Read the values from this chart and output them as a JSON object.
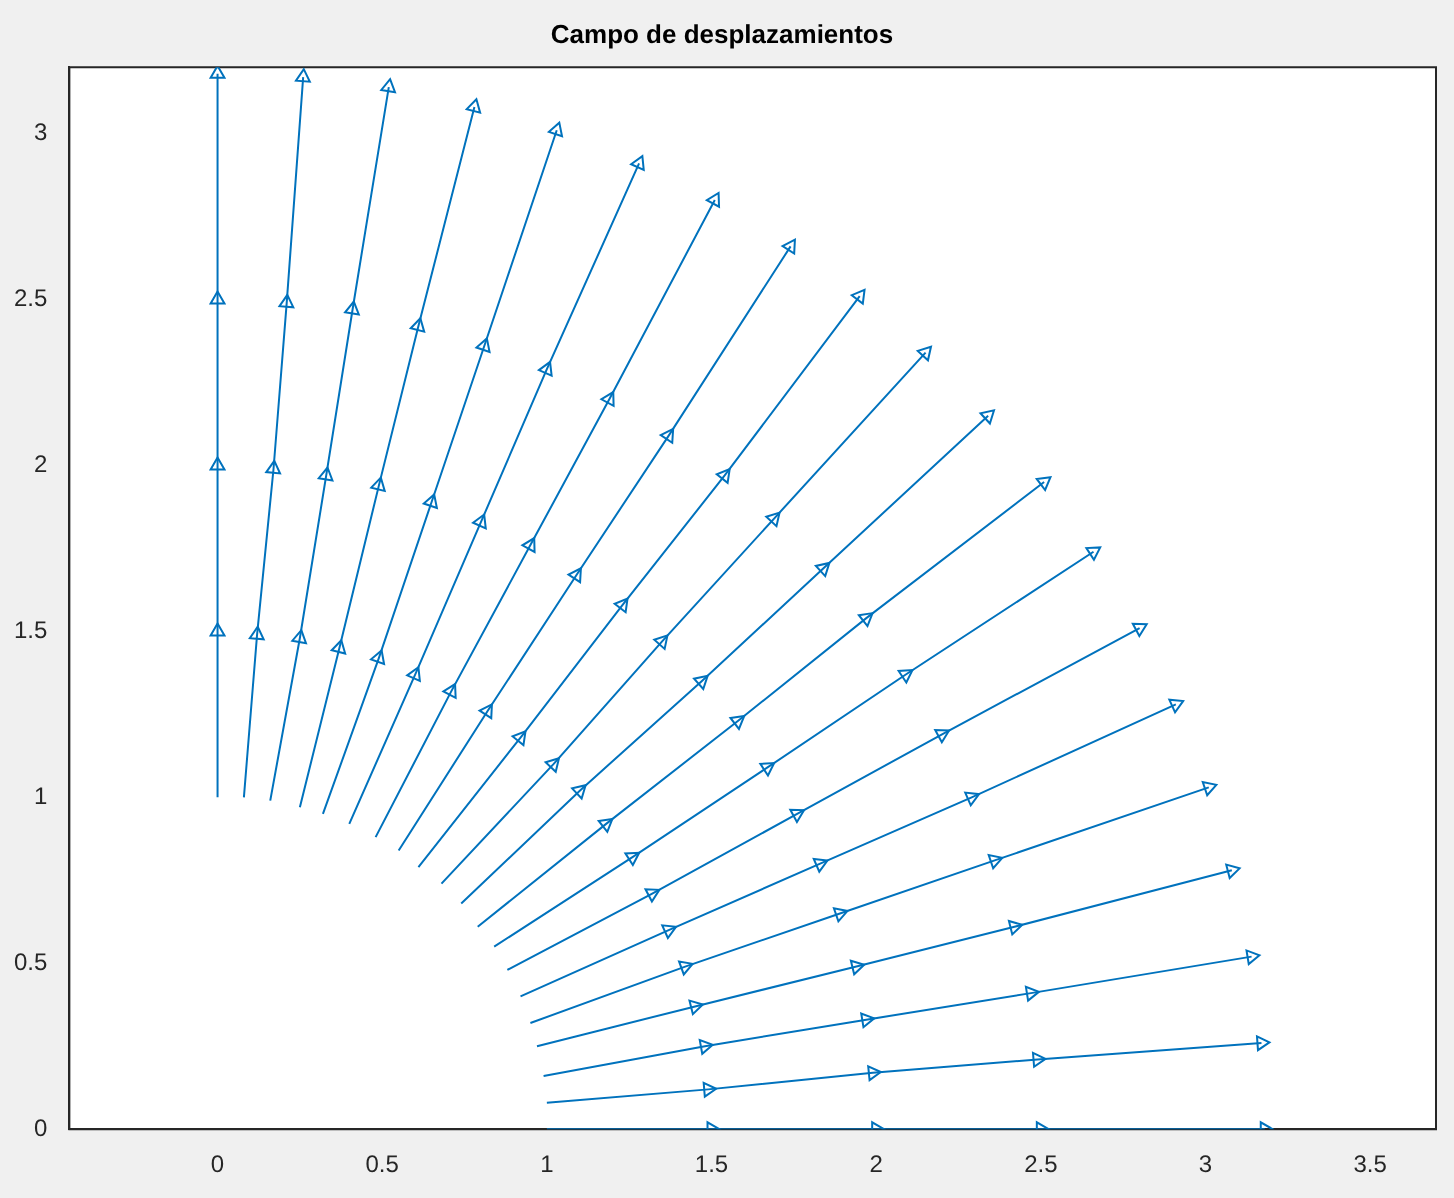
{
  "chart_data": {
    "type": "line",
    "title": "Campo de desplazamientos",
    "marker": "triangle",
    "xlim": [
      -0.45,
      3.7
    ],
    "ylim": [
      0,
      3.2
    ],
    "xticks": [
      0,
      0.5,
      1,
      1.5,
      2,
      2.5,
      3,
      3.5
    ],
    "yticks": [
      0,
      0.5,
      1,
      1.5,
      2,
      2.5,
      3
    ],
    "series": [
      {
        "color": "#0072bd",
        "x": [
          1,
          1.5,
          2,
          2.5,
          3.18
        ],
        "values": [
          0,
          0,
          0,
          0,
          0
        ]
      },
      {
        "color": "#0072bd",
        "x": [
          1.0,
          1.49,
          1.99,
          2.49,
          3.17
        ],
        "values": [
          0.08,
          0.12,
          0.17,
          0.21,
          0.26
        ]
      },
      {
        "color": "#0072bd",
        "x": [
          0.99,
          1.48,
          1.97,
          2.47,
          3.14
        ],
        "values": [
          0.16,
          0.25,
          0.33,
          0.41,
          0.52
        ]
      },
      {
        "color": "#0072bd",
        "x": [
          0.97,
          1.45,
          1.94,
          2.42,
          3.08
        ],
        "values": [
          0.25,
          0.37,
          0.49,
          0.61,
          0.78
        ]
      },
      {
        "color": "#0072bd",
        "x": [
          0.95,
          1.42,
          1.89,
          2.36,
          3.01
        ],
        "values": [
          0.32,
          0.49,
          0.65,
          0.81,
          1.03
        ]
      },
      {
        "color": "#0072bd",
        "x": [
          0.92,
          1.37,
          1.83,
          2.29,
          2.91
        ],
        "values": [
          0.4,
          0.6,
          0.8,
          1.0,
          1.28
        ]
      },
      {
        "color": "#0072bd",
        "x": [
          0.88,
          1.32,
          1.76,
          2.2,
          2.8
        ],
        "values": [
          0.48,
          0.71,
          0.95,
          1.19,
          1.51
        ]
      },
      {
        "color": "#0072bd",
        "x": [
          0.84,
          1.26,
          1.67,
          2.09,
          2.66
        ],
        "values": [
          0.55,
          0.82,
          1.09,
          1.37,
          1.74
        ]
      },
      {
        "color": "#0072bd",
        "x": [
          0.79,
          1.18,
          1.58,
          1.97,
          2.51
        ],
        "values": [
          0.61,
          0.92,
          1.23,
          1.54,
          1.95
        ]
      },
      {
        "color": "#0072bd",
        "x": [
          0.74,
          1.1,
          1.47,
          1.84,
          2.34
        ],
        "values": [
          0.68,
          1.02,
          1.35,
          1.69,
          2.15
        ]
      },
      {
        "color": "#0072bd",
        "x": [
          0.68,
          1.02,
          1.35,
          1.69,
          2.15
        ],
        "values": [
          0.74,
          1.1,
          1.47,
          1.84,
          2.34
        ]
      },
      {
        "color": "#0072bd",
        "x": [
          0.61,
          0.92,
          1.23,
          1.54,
          1.95
        ],
        "values": [
          0.79,
          1.18,
          1.58,
          1.97,
          2.51
        ]
      },
      {
        "color": "#0072bd",
        "x": [
          0.55,
          0.82,
          1.09,
          1.37,
          1.74
        ],
        "values": [
          0.84,
          1.26,
          1.67,
          2.09,
          2.66
        ]
      },
      {
        "color": "#0072bd",
        "x": [
          0.48,
          0.71,
          0.95,
          1.19,
          1.51
        ],
        "values": [
          0.88,
          1.32,
          1.76,
          2.2,
          2.8
        ]
      },
      {
        "color": "#0072bd",
        "x": [
          0.4,
          0.6,
          0.8,
          1.0,
          1.28
        ],
        "values": [
          0.92,
          1.37,
          1.83,
          2.29,
          2.91
        ]
      },
      {
        "color": "#0072bd",
        "x": [
          0.32,
          0.49,
          0.65,
          0.81,
          1.03
        ],
        "values": [
          0.95,
          1.42,
          1.89,
          2.36,
          3.01
        ]
      },
      {
        "color": "#0072bd",
        "x": [
          0.25,
          0.37,
          0.49,
          0.61,
          0.78
        ],
        "values": [
          0.97,
          1.45,
          1.94,
          2.42,
          3.08
        ]
      },
      {
        "color": "#0072bd",
        "x": [
          0.16,
          0.25,
          0.33,
          0.41,
          0.52
        ],
        "values": [
          0.99,
          1.48,
          1.97,
          2.47,
          3.14
        ]
      },
      {
        "color": "#0072bd",
        "x": [
          0.08,
          0.12,
          0.17,
          0.21,
          0.26
        ],
        "values": [
          1.0,
          1.49,
          1.99,
          2.49,
          3.17
        ]
      },
      {
        "color": "#0072bd",
        "x": [
          0,
          0,
          0,
          0,
          0
        ],
        "values": [
          1,
          1.5,
          2,
          2.5,
          3.18
        ]
      }
    ]
  }
}
